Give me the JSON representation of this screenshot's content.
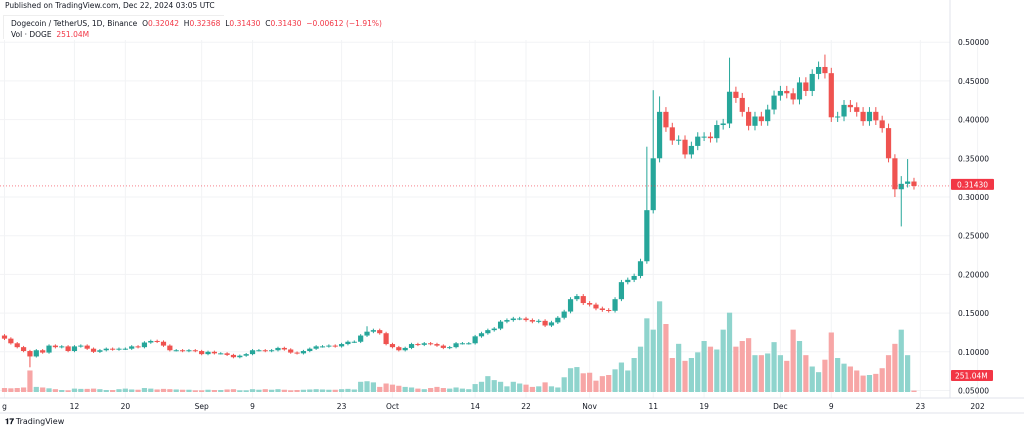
{
  "published": "Published on TradingView.com, Dec 22, 2024 03:05 UTC",
  "legend": {
    "symbol": "Dogecoin / TetherUS, 1D, Binance",
    "o_label": "O",
    "o": "0.32042",
    "h_label": "H",
    "h": "0.32368",
    "l_label": "L",
    "l": "0.31430",
    "c_label": "C",
    "c": "0.31430",
    "change": "−0.00612 (−1.91%)",
    "vol_label": "Vol · DOGE",
    "vol": "251.04M"
  },
  "brand": "TradingView",
  "colors": {
    "up": "#26a69a",
    "down": "#ef5350",
    "vol_up": "#8fd4cd",
    "vol_down": "#f7a6a6",
    "last_price": "#f23645"
  },
  "chart_data": {
    "type": "candlestick",
    "title": "Dogecoin / TetherUS, 1D, Binance",
    "start_date": "2024-08-01",
    "end_date": "2024-12-22",
    "ylim": [
      0.05,
      0.5
    ],
    "y_ticks": [
      "0.05000",
      "0.10000",
      "0.15000",
      "0.20000",
      "0.25000",
      "0.30000",
      "0.35000",
      "0.40000",
      "0.45000",
      "0.50000"
    ],
    "y_tick_values": [
      0.05,
      0.1,
      0.15,
      0.2,
      0.25,
      0.3,
      0.35,
      0.4,
      0.45,
      0.5
    ],
    "x_ticks": [
      {
        "label": "g",
        "day": 0
      },
      {
        "label": "12",
        "day": 11
      },
      {
        "label": "20",
        "day": 19
      },
      {
        "label": "Sep",
        "day": 31
      },
      {
        "label": "9",
        "day": 39
      },
      {
        "label": "23",
        "day": 53
      },
      {
        "label": "Oct",
        "day": 61
      },
      {
        "label": "14",
        "day": 74
      },
      {
        "label": "22",
        "day": 82
      },
      {
        "label": "Nov",
        "day": 92
      },
      {
        "label": "11",
        "day": 102
      },
      {
        "label": "19",
        "day": 110
      },
      {
        "label": "Dec",
        "day": 122
      },
      {
        "label": "9",
        "day": 130
      },
      {
        "label": "23",
        "day": 144
      },
      {
        "label": "202",
        "day": 153
      }
    ],
    "last_price": 0.3143,
    "last_price_label": "0.31430",
    "last_volume_label": "251.04M",
    "first_open": 0.121,
    "close": [
      0.117,
      0.111,
      0.106,
      0.101,
      0.094,
      0.102,
      0.099,
      0.108,
      0.106,
      0.107,
      0.101,
      0.107,
      0.108,
      0.104,
      0.1,
      0.102,
      0.104,
      0.103,
      0.104,
      0.104,
      0.107,
      0.106,
      0.112,
      0.114,
      0.113,
      0.108,
      0.102,
      0.102,
      0.101,
      0.102,
      0.101,
      0.097,
      0.1,
      0.098,
      0.098,
      0.096,
      0.093,
      0.095,
      0.097,
      0.102,
      0.102,
      0.101,
      0.102,
      0.105,
      0.103,
      0.099,
      0.098,
      0.101,
      0.104,
      0.107,
      0.107,
      0.108,
      0.107,
      0.11,
      0.113,
      0.113,
      0.121,
      0.126,
      0.128,
      0.124,
      0.11,
      0.106,
      0.102,
      0.105,
      0.11,
      0.109,
      0.111,
      0.11,
      0.108,
      0.105,
      0.106,
      0.111,
      0.111,
      0.111,
      0.12,
      0.124,
      0.128,
      0.13,
      0.139,
      0.141,
      0.143,
      0.143,
      0.141,
      0.139,
      0.14,
      0.134,
      0.138,
      0.144,
      0.152,
      0.168,
      0.172,
      0.163,
      0.161,
      0.156,
      0.154,
      0.153,
      0.168,
      0.19,
      0.193,
      0.198,
      0.217,
      0.283,
      0.35,
      0.41,
      0.39,
      0.373,
      0.374,
      0.355,
      0.366,
      0.378,
      0.378,
      0.376,
      0.393,
      0.395,
      0.436,
      0.428,
      0.41,
      0.392,
      0.404,
      0.398,
      0.413,
      0.431,
      0.437,
      0.434,
      0.426,
      0.448,
      0.437,
      0.459,
      0.468,
      0.46,
      0.403,
      0.404,
      0.419,
      0.416,
      0.41,
      0.398,
      0.41,
      0.399,
      0.389,
      0.35,
      0.31,
      0.317,
      0.32,
      0.3143
    ],
    "wick_extremes": [
      {
        "day": 4,
        "low": 0.08
      },
      {
        "day": 57,
        "high": 0.133
      },
      {
        "day": 101,
        "high": 0.365
      },
      {
        "day": 102,
        "high": 0.438
      },
      {
        "day": 103,
        "high": 0.43
      },
      {
        "day": 114,
        "high": 0.48
      },
      {
        "day": 127,
        "high": 0.465
      },
      {
        "day": 129,
        "high": 0.484
      },
      {
        "day": 140,
        "low": 0.3
      },
      {
        "day": 141,
        "low": 0.262,
        "high": 0.327
      },
      {
        "day": 142,
        "high": 0.349
      }
    ],
    "volume_millions": [
      700,
      650,
      700,
      800,
      3800,
      900,
      800,
      650,
      500,
      350,
      300,
      600,
      550,
      550,
      600,
      500,
      350,
      350,
      500,
      600,
      450,
      400,
      700,
      600,
      450,
      550,
      500,
      450,
      400,
      400,
      300,
      300,
      400,
      350,
      350,
      450,
      500,
      300,
      300,
      500,
      400,
      500,
      400,
      500,
      400,
      300,
      350,
      400,
      450,
      500,
      450,
      400,
      400,
      500,
      550,
      450,
      1800,
      1900,
      1700,
      900,
      1500,
      1300,
      1100,
      900,
      800,
      600,
      500,
      700,
      900,
      700,
      600,
      800,
      600,
      500,
      1400,
      1800,
      2800,
      2100,
      1800,
      1000,
      1800,
      1500,
      1300,
      900,
      1000,
      1700,
      1000,
      800,
      2600,
      4200,
      4400,
      3300,
      3400,
      2000,
      2800,
      3000,
      4000,
      5200,
      3800,
      6000,
      8000,
      13000,
      11000,
      16000,
      12000,
      6000,
      8500,
      5500,
      6000,
      7000,
      9000,
      8000,
      7500,
      11000,
      14000,
      8000,
      9000,
      9500,
      6500,
      6500,
      6800,
      8800,
      6500,
      5500,
      11000,
      9000,
      6500,
      4500,
      3500,
      5700,
      10500,
      6000,
      5000,
      4500,
      3800,
      2900,
      3000,
      3200,
      4200,
      6500,
      8500,
      11000,
      6500,
      251.04
    ]
  }
}
